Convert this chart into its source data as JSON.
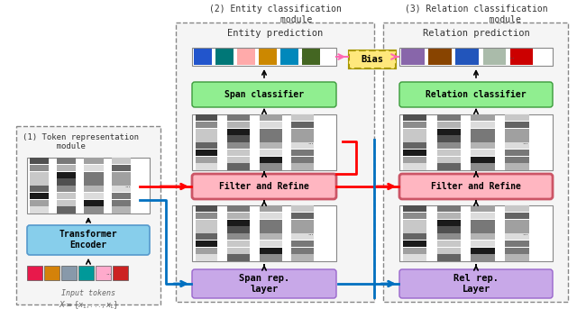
{
  "title": "",
  "bg_color": "#ffffff",
  "module1_title": "(1) Token representation\n       module",
  "module2_title": "(2) Entity classification\n        module",
  "module3_title": "(3) Relation classification\n           module",
  "entity_pred_title": "Entity prediction",
  "relation_pred_title": "Relation prediction",
  "transformer_label": "Transformer\nEncoder",
  "input_label": "Input tokens\n$X=\\{x_1,...,x_L\\}$",
  "span_rep_label": "Span rep.\nlayer",
  "rel_rep_label": "Rel rep.\nLayer",
  "span_classifier_label": "Span classifier",
  "relation_classifier_label": "Relation classifier",
  "filter_refine_label": "Filter and Refine",
  "bias_label": "Bias",
  "colors": {
    "transformer": "#87CEEB",
    "span_rep": "#C8A8E8",
    "rel_rep": "#C8A8E8",
    "span_classifier": "#90EE90",
    "relation_classifier": "#90EE90",
    "filter_refine": "#FFB6C1",
    "bias": "#FFE87C",
    "module_border": "#555555",
    "arrow_black": "#000000",
    "arrow_red": "#FF0000",
    "arrow_blue": "#0070C0",
    "arrow_pink": "#FF69B4",
    "input_token_colors": [
      "#E8194B",
      "#D4820A",
      "#8899AA",
      "#009999",
      "#FFAACC",
      "#CC2222"
    ],
    "entity_output_colors": [
      "#2255CC",
      "#007777",
      "#FFAAAA",
      "#CC8800",
      "#0088BB",
      "#446622"
    ],
    "relation_output_colors": [
      "#8866AA",
      "#884400",
      "#2255BB",
      "#AABBAA",
      "#CC0000"
    ]
  }
}
